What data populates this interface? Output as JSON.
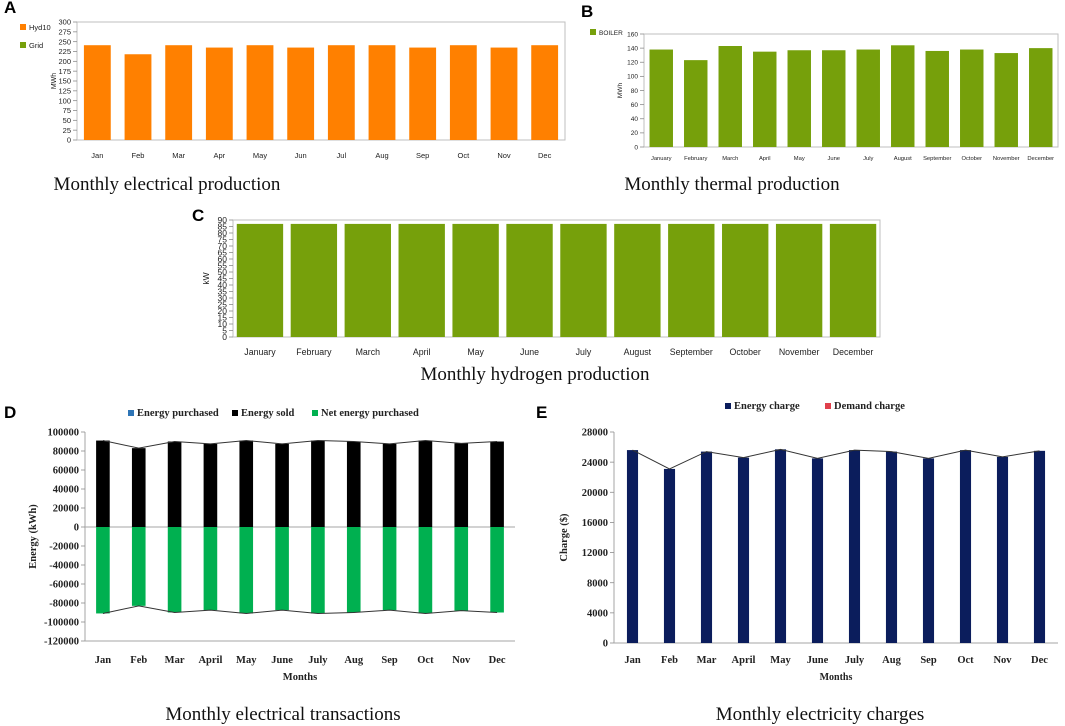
{
  "colors": {
    "orange": "#FF8000",
    "green_olive": "#76A00B",
    "black": "#000000",
    "green_bright": "#00B050",
    "blue_legend": "#2E75B6",
    "navy": "#0B1D5C",
    "red_legend": "#E0404C"
  },
  "chart_data": [
    {
      "id": "A",
      "panel_label": "A",
      "type": "bar",
      "caption": "Monthly electrical production",
      "ylabel": "MWh",
      "ylim": [
        0,
        300
      ],
      "yticks": [
        "0",
        "25",
        "50",
        "75",
        "100",
        "125",
        "150",
        "175",
        "200",
        "225",
        "250",
        "275",
        "300"
      ],
      "legend": [
        {
          "name": "Hyd10",
          "color": "#FF8000"
        },
        {
          "name": "Grid",
          "color": "#76A00B"
        }
      ],
      "categories": [
        "Jan",
        "Feb",
        "Mar",
        "Apr",
        "May",
        "Jun",
        "Jul",
        "Aug",
        "Sep",
        "Oct",
        "Nov",
        "Dec"
      ],
      "series": [
        {
          "name": "Hyd10",
          "color": "#FF8000",
          "values": [
            241,
            218,
            241,
            235,
            241,
            235,
            241,
            241,
            235,
            241,
            235,
            241
          ]
        }
      ]
    },
    {
      "id": "B",
      "panel_label": "B",
      "type": "bar",
      "caption": "Monthly thermal production",
      "ylabel": "MWh",
      "ylim": [
        0,
        160
      ],
      "yticks": [
        "0",
        "20",
        "40",
        "60",
        "80",
        "100",
        "120",
        "140",
        "160"
      ],
      "legend": [
        {
          "name": "BOILER",
          "color": "#76A00B"
        }
      ],
      "categories": [
        "January",
        "February",
        "March",
        "April",
        "May",
        "June",
        "July",
        "August",
        "September",
        "October",
        "November",
        "December"
      ],
      "series": [
        {
          "name": "BOILER",
          "color": "#76A00B",
          "values": [
            138,
            123,
            143,
            135,
            137,
            137,
            138,
            144,
            136,
            138,
            133,
            140
          ]
        }
      ]
    },
    {
      "id": "C",
      "panel_label": "C",
      "type": "bar",
      "caption": "Monthly hydrogen production",
      "ylabel": "kW",
      "ylim": [
        0,
        90
      ],
      "yticks": [
        "0",
        "5",
        "10",
        "15",
        "20",
        "25",
        "30",
        "35",
        "40",
        "45",
        "50",
        "55",
        "60",
        "65",
        "70",
        "75",
        "80",
        "85",
        "90"
      ],
      "legend": [],
      "categories": [
        "January",
        "February",
        "March",
        "April",
        "May",
        "June",
        "July",
        "August",
        "September",
        "October",
        "November",
        "December"
      ],
      "series": [
        {
          "name": "Hydrogen",
          "color": "#76A00B",
          "values": [
            87,
            87,
            87,
            87,
            87,
            87,
            87,
            87,
            87,
            87,
            87,
            87
          ]
        }
      ]
    },
    {
      "id": "D",
      "panel_label": "D",
      "type": "bar",
      "caption": "Monthly electrical transactions",
      "ylabel": "Energy (kWh)",
      "xlabel": "Months",
      "ylim": [
        -120000,
        100000
      ],
      "yticks": [
        "-120000",
        "-100000",
        "-80000",
        "-60000",
        "-40000",
        "-20000",
        "0",
        "20000",
        "40000",
        "60000",
        "80000",
        "100000"
      ],
      "legend": [
        {
          "name": "Energy purchased",
          "color": "#2E75B6"
        },
        {
          "name": "Energy sold",
          "color": "#000000"
        },
        {
          "name": "Net energy purchased",
          "color": "#00B050"
        }
      ],
      "categories": [
        "Jan",
        "Feb",
        "Mar",
        "April",
        "May",
        "June",
        "July",
        "Aug",
        "Sep",
        "Oct",
        "Nov",
        "Dec"
      ],
      "series": [
        {
          "name": "Energy purchased",
          "color": "#2E75B6",
          "values": [
            0,
            0,
            0,
            0,
            0,
            0,
            0,
            0,
            0,
            0,
            0,
            0
          ]
        },
        {
          "name": "Energy sold",
          "color": "#000000",
          "values": [
            91000,
            83000,
            90000,
            87500,
            91000,
            87500,
            91000,
            90000,
            87500,
            91000,
            88000,
            90000
          ]
        },
        {
          "name": "Net energy purchased",
          "color": "#00B050",
          "values": [
            -91000,
            -83000,
            -90000,
            -87500,
            -91000,
            -87500,
            -91000,
            -90000,
            -87500,
            -91000,
            -88000,
            -90000
          ]
        }
      ]
    },
    {
      "id": "E",
      "panel_label": "E",
      "type": "bar",
      "caption": "Monthly electricity charges",
      "ylabel": "Charge ($)",
      "xlabel": "Months",
      "ylim": [
        0,
        28000
      ],
      "yticks": [
        "0",
        "4000",
        "8000",
        "12000",
        "16000",
        "20000",
        "24000",
        "28000"
      ],
      "legend": [
        {
          "name": "Energy charge",
          "color": "#0B1D5C"
        },
        {
          "name": "Demand charge",
          "color": "#E0404C"
        }
      ],
      "categories": [
        "Jan",
        "Feb",
        "Mar",
        "April",
        "May",
        "June",
        "July",
        "Aug",
        "Sep",
        "Oct",
        "Nov",
        "Dec"
      ],
      "series": [
        {
          "name": "Energy charge",
          "color": "#0B1D5C",
          "values": [
            25600,
            23100,
            25400,
            24600,
            25700,
            24500,
            25600,
            25400,
            24500,
            25600,
            24700,
            25500
          ]
        },
        {
          "name": "Demand charge",
          "color": "#E0404C",
          "values": [
            0,
            0,
            0,
            0,
            0,
            0,
            0,
            0,
            0,
            0,
            0,
            0
          ]
        }
      ]
    }
  ]
}
